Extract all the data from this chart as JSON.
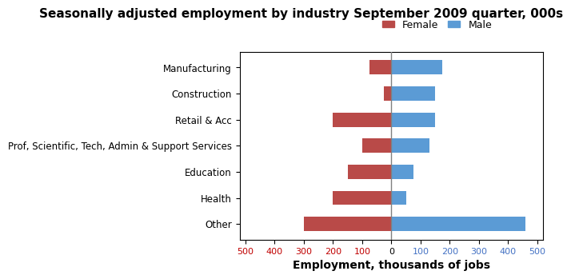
{
  "title": "Seasonally adjusted employment by industry September 2009 quarter, 000s",
  "categories": [
    "Manufacturing",
    "Construction",
    "Retail & Acc",
    "Prof, Scientific, Tech, Admin & Support Services",
    "Education",
    "Health",
    "Other"
  ],
  "female_values": [
    -75,
    -25,
    -200,
    -100,
    -150,
    -200,
    -300
  ],
  "male_values": [
    175,
    150,
    150,
    130,
    75,
    50,
    460
  ],
  "female_color": "#b94a48",
  "male_color": "#5b9bd5",
  "xlabel": "Employment, thousands of jobs",
  "xlim": [
    -520,
    520
  ],
  "xticks": [
    -500,
    -400,
    -300,
    -200,
    -100,
    0,
    100,
    200,
    300,
    400,
    500
  ],
  "xticklabels": [
    "500",
    "400",
    "300",
    "200",
    "100",
    "0",
    "100",
    "200",
    "300",
    "400",
    "500"
  ],
  "female_tick_color": "#c00000",
  "male_tick_color": "#4472c4",
  "background_color": "#ffffff",
  "title_fontsize": 11,
  "axis_label_fontsize": 10,
  "legend_fontsize": 9,
  "bar_height": 0.55
}
